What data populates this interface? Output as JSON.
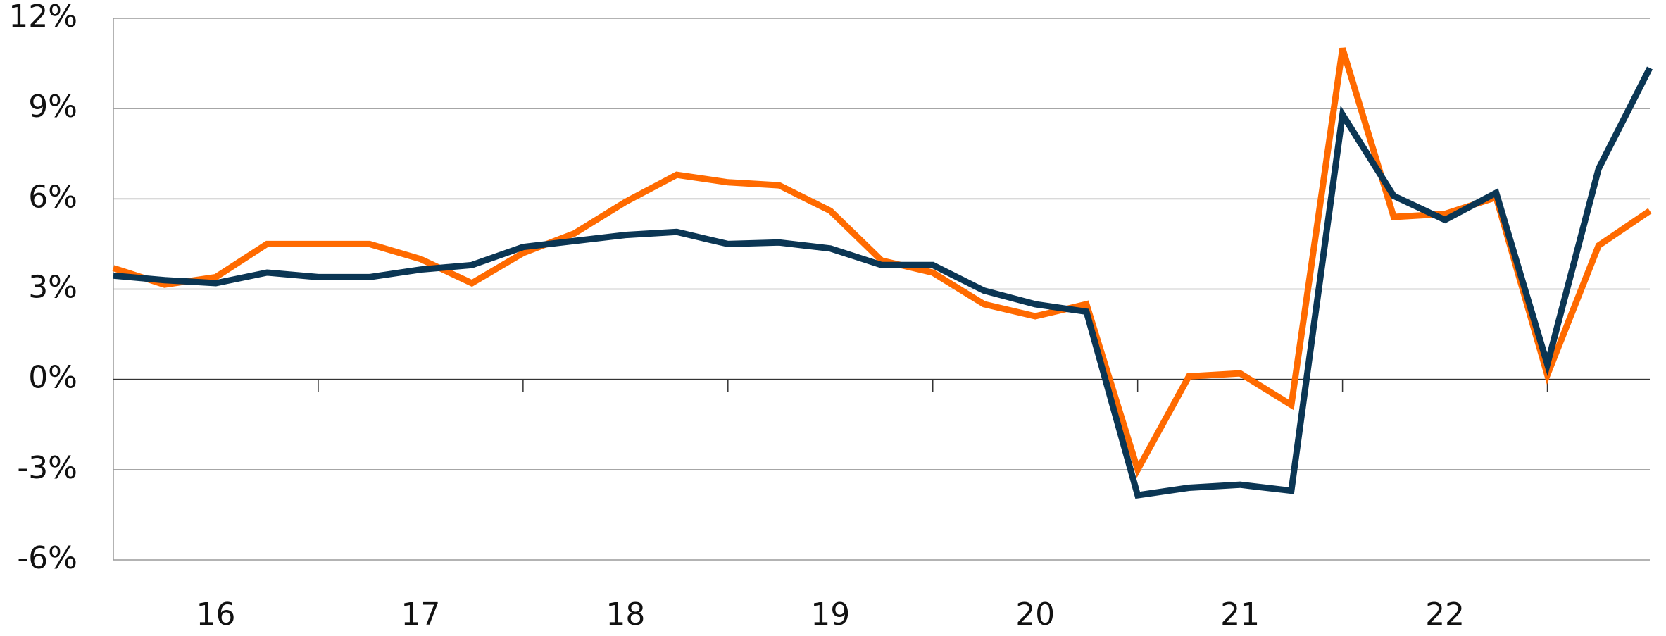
{
  "chart_data": {
    "type": "line",
    "categories": [
      null,
      null,
      "16",
      null,
      null,
      null,
      "17",
      null,
      null,
      null,
      "18",
      null,
      null,
      null,
      "19",
      null,
      null,
      null,
      "20",
      null,
      null,
      null,
      "21",
      null,
      null,
      null,
      "22",
      null,
      null,
      null,
      null
    ],
    "series": [
      {
        "color": "#ff6a00",
        "values": [
          3.7,
          3.15,
          3.4,
          4.5,
          4.5,
          4.5,
          4.0,
          3.2,
          4.2,
          4.85,
          5.9,
          6.8,
          6.55,
          6.45,
          5.6,
          3.95,
          3.55,
          2.5,
          2.1,
          2.5,
          -3.0,
          0.1,
          0.2,
          -0.85,
          11.0,
          5.4,
          5.5,
          6.05,
          0.15,
          4.45,
          5.6
        ]
      },
      {
        "color": "#0b3654",
        "values": [
          3.45,
          3.3,
          3.2,
          3.55,
          3.4,
          3.4,
          3.65,
          3.8,
          4.4,
          4.6,
          4.8,
          4.9,
          4.5,
          4.55,
          4.35,
          3.8,
          3.8,
          2.95,
          2.5,
          2.25,
          -3.85,
          -3.6,
          -3.5,
          -3.7,
          8.8,
          6.1,
          5.3,
          6.2,
          0.5,
          7.0,
          10.35
        ]
      }
    ],
    "ylim": [
      -6,
      12
    ],
    "yticks": [
      {
        "value": -6,
        "label": "-6%"
      },
      {
        "value": -3,
        "label": "-3%"
      },
      {
        "value": 0,
        "label": "0%"
      },
      {
        "value": 3,
        "label": "3%"
      },
      {
        "value": 6,
        "label": "6%"
      },
      {
        "value": 9,
        "label": "9%"
      },
      {
        "value": 12,
        "label": "12%"
      }
    ],
    "grid": true
  }
}
